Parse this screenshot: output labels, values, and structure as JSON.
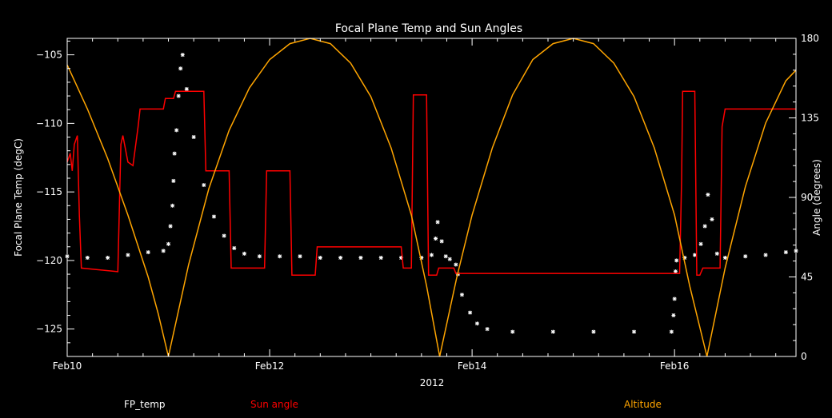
{
  "chart_data": {
    "type": "line",
    "title": "Focal Plane Temp and Sun Angles",
    "xlabel": "2012",
    "ylabel": "Focal Plane Temp (degC)",
    "y2label": "Angle (degrees)",
    "x_ticks": [
      "Feb10",
      "Feb12",
      "Feb14",
      "Feb16"
    ],
    "x_tick_values": [
      0,
      2,
      4,
      6
    ],
    "xlim": [
      0,
      7.2
    ],
    "ylim": [
      -127,
      -103.8
    ],
    "y_ticks": [
      -105,
      -110,
      -115,
      -120,
      -125
    ],
    "y2lim": [
      0,
      180
    ],
    "y2_ticks": [
      0,
      45,
      90,
      135,
      180
    ],
    "grid": false,
    "legend": [
      {
        "label": "FP_temp",
        "color": "#ffffff"
      },
      {
        "label": "Sun angle",
        "color": "#ff0000"
      },
      {
        "label": "Altitude",
        "color": "#ffa500"
      }
    ],
    "series": [
      {
        "name": "FP_temp",
        "axis": "left",
        "style": "scatter",
        "color": "#ffffff",
        "points": [
          [
            0.0,
            -119.7
          ],
          [
            0.2,
            -119.8
          ],
          [
            0.4,
            -119.8
          ],
          [
            0.6,
            -119.6
          ],
          [
            0.8,
            -119.4
          ],
          [
            0.95,
            -119.3
          ],
          [
            1.0,
            -118.8
          ],
          [
            1.02,
            -117.5
          ],
          [
            1.04,
            -116.0
          ],
          [
            1.05,
            -114.2
          ],
          [
            1.06,
            -112.2
          ],
          [
            1.08,
            -110.5
          ],
          [
            1.1,
            -108.0
          ],
          [
            1.12,
            -106.0
          ],
          [
            1.14,
            -105.0
          ],
          [
            1.18,
            -107.5
          ],
          [
            1.25,
            -111.0
          ],
          [
            1.35,
            -114.5
          ],
          [
            1.45,
            -116.8
          ],
          [
            1.55,
            -118.2
          ],
          [
            1.65,
            -119.1
          ],
          [
            1.75,
            -119.5
          ],
          [
            1.9,
            -119.7
          ],
          [
            2.1,
            -119.7
          ],
          [
            2.3,
            -119.7
          ],
          [
            2.5,
            -119.8
          ],
          [
            2.7,
            -119.8
          ],
          [
            2.9,
            -119.8
          ],
          [
            3.1,
            -119.8
          ],
          [
            3.3,
            -119.8
          ],
          [
            3.5,
            -119.8
          ],
          [
            3.6,
            -119.6
          ],
          [
            3.64,
            -118.4
          ],
          [
            3.66,
            -117.2
          ],
          [
            3.7,
            -118.6
          ],
          [
            3.74,
            -119.7
          ],
          [
            3.78,
            -119.9
          ],
          [
            3.84,
            -120.3
          ],
          [
            3.86,
            -121.0
          ],
          [
            3.9,
            -122.5
          ],
          [
            3.98,
            -123.8
          ],
          [
            4.05,
            -124.6
          ],
          [
            4.15,
            -125.0
          ],
          [
            4.4,
            -125.2
          ],
          [
            4.8,
            -125.2
          ],
          [
            5.2,
            -125.2
          ],
          [
            5.6,
            -125.2
          ],
          [
            5.97,
            -125.2
          ],
          [
            5.99,
            -124.0
          ],
          [
            6.0,
            -122.8
          ],
          [
            6.01,
            -120.8
          ],
          [
            6.02,
            -120.0
          ],
          [
            6.1,
            -119.8
          ],
          [
            6.2,
            -119.6
          ],
          [
            6.26,
            -118.8
          ],
          [
            6.3,
            -117.5
          ],
          [
            6.33,
            -115.2
          ],
          [
            6.37,
            -117.0
          ],
          [
            6.42,
            -119.5
          ],
          [
            6.5,
            -119.8
          ],
          [
            6.7,
            -119.7
          ],
          [
            6.9,
            -119.6
          ],
          [
            7.1,
            -119.4
          ],
          [
            7.2,
            -119.3
          ]
        ]
      },
      {
        "name": "Sun angle",
        "axis": "right",
        "style": "line",
        "color": "#ff0000",
        "points": [
          [
            0.0,
            110
          ],
          [
            0.03,
            115
          ],
          [
            0.05,
            105
          ],
          [
            0.07,
            120
          ],
          [
            0.1,
            125
          ],
          [
            0.12,
            80
          ],
          [
            0.14,
            50
          ],
          [
            0.5,
            48
          ],
          [
            0.53,
            120
          ],
          [
            0.55,
            125
          ],
          [
            0.6,
            110
          ],
          [
            0.65,
            108
          ],
          [
            0.7,
            130
          ],
          [
            0.72,
            140
          ],
          [
            0.95,
            140
          ],
          [
            0.97,
            146
          ],
          [
            1.05,
            146
          ],
          [
            1.07,
            150
          ],
          [
            1.35,
            150
          ],
          [
            1.37,
            105
          ],
          [
            1.6,
            105
          ],
          [
            1.62,
            50
          ],
          [
            1.95,
            50
          ],
          [
            1.97,
            105
          ],
          [
            2.2,
            105
          ],
          [
            2.22,
            46
          ],
          [
            2.45,
            46
          ],
          [
            2.47,
            62
          ],
          [
            3.3,
            62
          ],
          [
            3.32,
            50
          ],
          [
            3.4,
            50
          ],
          [
            3.42,
            148
          ],
          [
            3.55,
            148
          ],
          [
            3.57,
            46
          ],
          [
            3.65,
            46
          ],
          [
            3.67,
            50
          ],
          [
            3.82,
            50
          ],
          [
            3.84,
            47
          ],
          [
            4.5,
            47
          ],
          [
            5.5,
            47
          ],
          [
            6.05,
            47
          ],
          [
            6.07,
            100
          ],
          [
            6.08,
            150
          ],
          [
            6.2,
            150
          ],
          [
            6.22,
            46
          ],
          [
            6.25,
            46
          ],
          [
            6.28,
            50
          ],
          [
            6.45,
            50
          ],
          [
            6.47,
            130
          ],
          [
            6.5,
            140
          ],
          [
            7.2,
            140
          ]
        ]
      },
      {
        "name": "Altitude",
        "axis": "right",
        "style": "line",
        "color": "#ffa500",
        "points": [
          [
            0.0,
            165
          ],
          [
            0.2,
            140
          ],
          [
            0.4,
            112
          ],
          [
            0.6,
            80
          ],
          [
            0.8,
            45
          ],
          [
            0.9,
            24
          ],
          [
            1.0,
            0
          ],
          [
            1.2,
            52
          ],
          [
            1.4,
            95
          ],
          [
            1.6,
            128
          ],
          [
            1.8,
            152
          ],
          [
            2.0,
            168
          ],
          [
            2.2,
            177
          ],
          [
            2.4,
            180
          ],
          [
            2.6,
            177
          ],
          [
            2.8,
            166
          ],
          [
            3.0,
            147
          ],
          [
            3.2,
            118
          ],
          [
            3.4,
            80
          ],
          [
            3.55,
            40
          ],
          [
            3.68,
            0
          ],
          [
            3.85,
            45
          ],
          [
            4.0,
            80
          ],
          [
            4.2,
            118
          ],
          [
            4.4,
            148
          ],
          [
            4.6,
            168
          ],
          [
            4.8,
            177
          ],
          [
            5.0,
            180
          ],
          [
            5.2,
            177
          ],
          [
            5.4,
            166
          ],
          [
            5.6,
            147
          ],
          [
            5.8,
            118
          ],
          [
            6.0,
            80
          ],
          [
            6.15,
            40
          ],
          [
            6.32,
            0
          ],
          [
            6.5,
            50
          ],
          [
            6.7,
            96
          ],
          [
            6.9,
            132
          ],
          [
            7.1,
            156
          ],
          [
            7.2,
            162
          ]
        ]
      }
    ]
  }
}
